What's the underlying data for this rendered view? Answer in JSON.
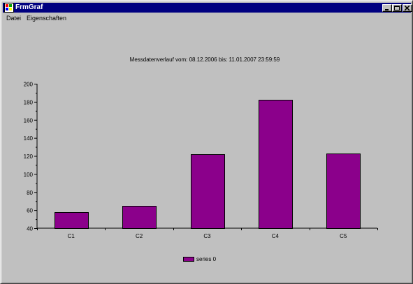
{
  "window": {
    "title": "FrmGraf"
  },
  "menu": {
    "items": [
      "Datei",
      "Eigenschaften"
    ]
  },
  "chart_data": {
    "type": "bar",
    "title": "Messdatenverlauf vom: 08.12.2006 bis: 11.01.2007 23:59:59",
    "categories": [
      "C1",
      "C2",
      "C3",
      "C4",
      "C5"
    ],
    "series": [
      {
        "name": "series 0",
        "values": [
          58,
          65,
          122,
          182,
          123
        ],
        "color": "#8b008b"
      }
    ],
    "ylim": [
      40,
      200
    ],
    "yticks": [
      "40",
      "60",
      "80",
      "100",
      "120",
      "140",
      "160",
      "180",
      "200"
    ],
    "grid": false,
    "legend_position": "bottom-center"
  },
  "colors": {
    "titlebar": "#000080",
    "face": "#c0c0c0",
    "bar": "#8b008b"
  }
}
